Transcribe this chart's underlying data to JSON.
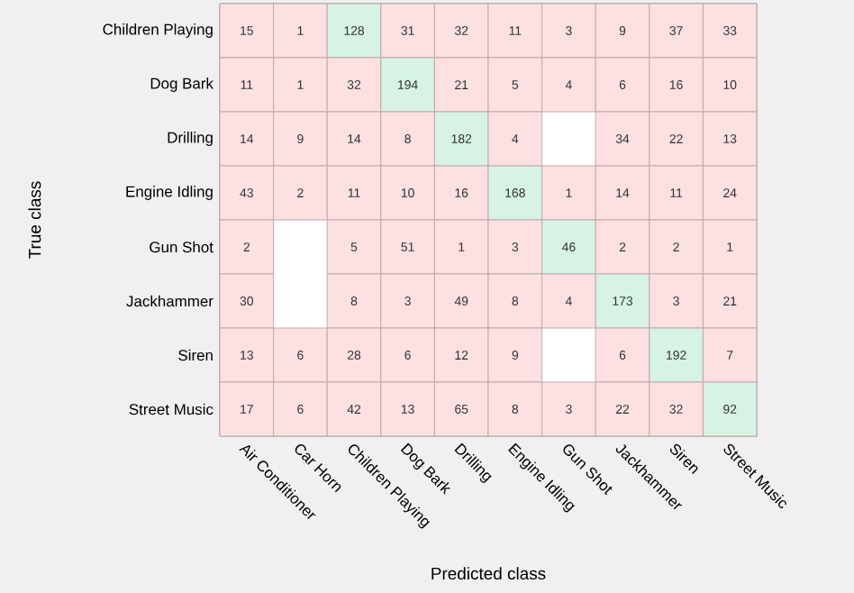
{
  "chart_data": {
    "type": "heatmap",
    "data_labels": true,
    "xlabel": "Predicted class",
    "ylabel": "True class",
    "categories": [
      "Air Conditioner",
      "Car Horn",
      "Children Playing",
      "Dog Bark",
      "Drilling",
      "Engine Idling",
      "Gun Shot",
      "Jackhammer",
      "Siren",
      "Street Music"
    ],
    "y_categories": [
      "Children Playing",
      "Dog Bark",
      "Drilling",
      "Engine Idling",
      "Gun Shot",
      "Jackhammer",
      "Siren",
      "Street Music"
    ],
    "cells": [
      [
        15,
        1,
        128,
        31,
        32,
        11,
        3,
        9,
        37,
        33
      ],
      [
        11,
        1,
        32,
        194,
        21,
        5,
        4,
        6,
        16,
        10
      ],
      [
        14,
        9,
        14,
        8,
        182,
        4,
        null,
        34,
        22,
        13
      ],
      [
        43,
        2,
        11,
        10,
        16,
        168,
        1,
        14,
        11,
        24
      ],
      [
        2,
        null,
        5,
        51,
        1,
        3,
        46,
        2,
        2,
        1
      ],
      [
        30,
        null,
        8,
        3,
        49,
        8,
        4,
        173,
        3,
        21
      ],
      [
        13,
        6,
        28,
        6,
        12,
        9,
        null,
        6,
        192,
        7
      ],
      [
        17,
        6,
        42,
        13,
        65,
        8,
        3,
        22,
        32,
        92
      ]
    ],
    "colors": [
      [
        "#fde0e2",
        "#fde0e2",
        "#d6f3e3",
        "#fde0e2",
        "#fde0e2",
        "#fde0e2",
        "#fde0e2",
        "#fde0e2",
        "#fde0e2",
        "#fde0e2"
      ],
      [
        "#fde0e2",
        "#fde0e2",
        "#fde0e2",
        "#d6f3e3",
        "#fde0e2",
        "#fde0e2",
        "#fde0e2",
        "#fde0e2",
        "#fde0e2",
        "#fde0e2"
      ],
      [
        "#fde0e2",
        "#fde0e2",
        "#fde0e2",
        "#fde0e2",
        "#d6f3e3",
        "#fde0e2",
        null,
        "#fde0e2",
        "#fde0e2",
        "#fde0e2"
      ],
      [
        "#fde0e2",
        "#fde0e2",
        "#fde0e2",
        "#fde0e2",
        "#fde0e2",
        "#d6f3e3",
        "#fde0e2",
        "#fde0e2",
        "#fde0e2",
        "#fde0e2"
      ],
      [
        "#fde0e2",
        null,
        "#fde0e2",
        "#fde0e2",
        "#fde0e2",
        "#fde0e2",
        "#d6f3e3",
        "#fde0e2",
        "#fde0e2",
        "#fde0e2"
      ],
      [
        "#fde0e2",
        null,
        "#fde0e2",
        "#fde0e2",
        "#fde0e2",
        "#fde0e2",
        "#fde0e2",
        "#d6f3e3",
        "#fde0e2",
        "#fde0e2"
      ],
      [
        "#fde0e2",
        "#fde0e2",
        "#fde0e2",
        "#fde0e2",
        "#fde0e2",
        "#fde0e2",
        null,
        "#fde0e2",
        "#d6f3e3",
        "#fde0e2"
      ],
      [
        "#fde0e2",
        "#fde0e2",
        "#fde0e2",
        "#fde0e2",
        "#fde0e2",
        "#fde0e2",
        "#fde0e2",
        "#fde0e2",
        "#fde0e2",
        "#d6f3e3"
      ]
    ]
  }
}
